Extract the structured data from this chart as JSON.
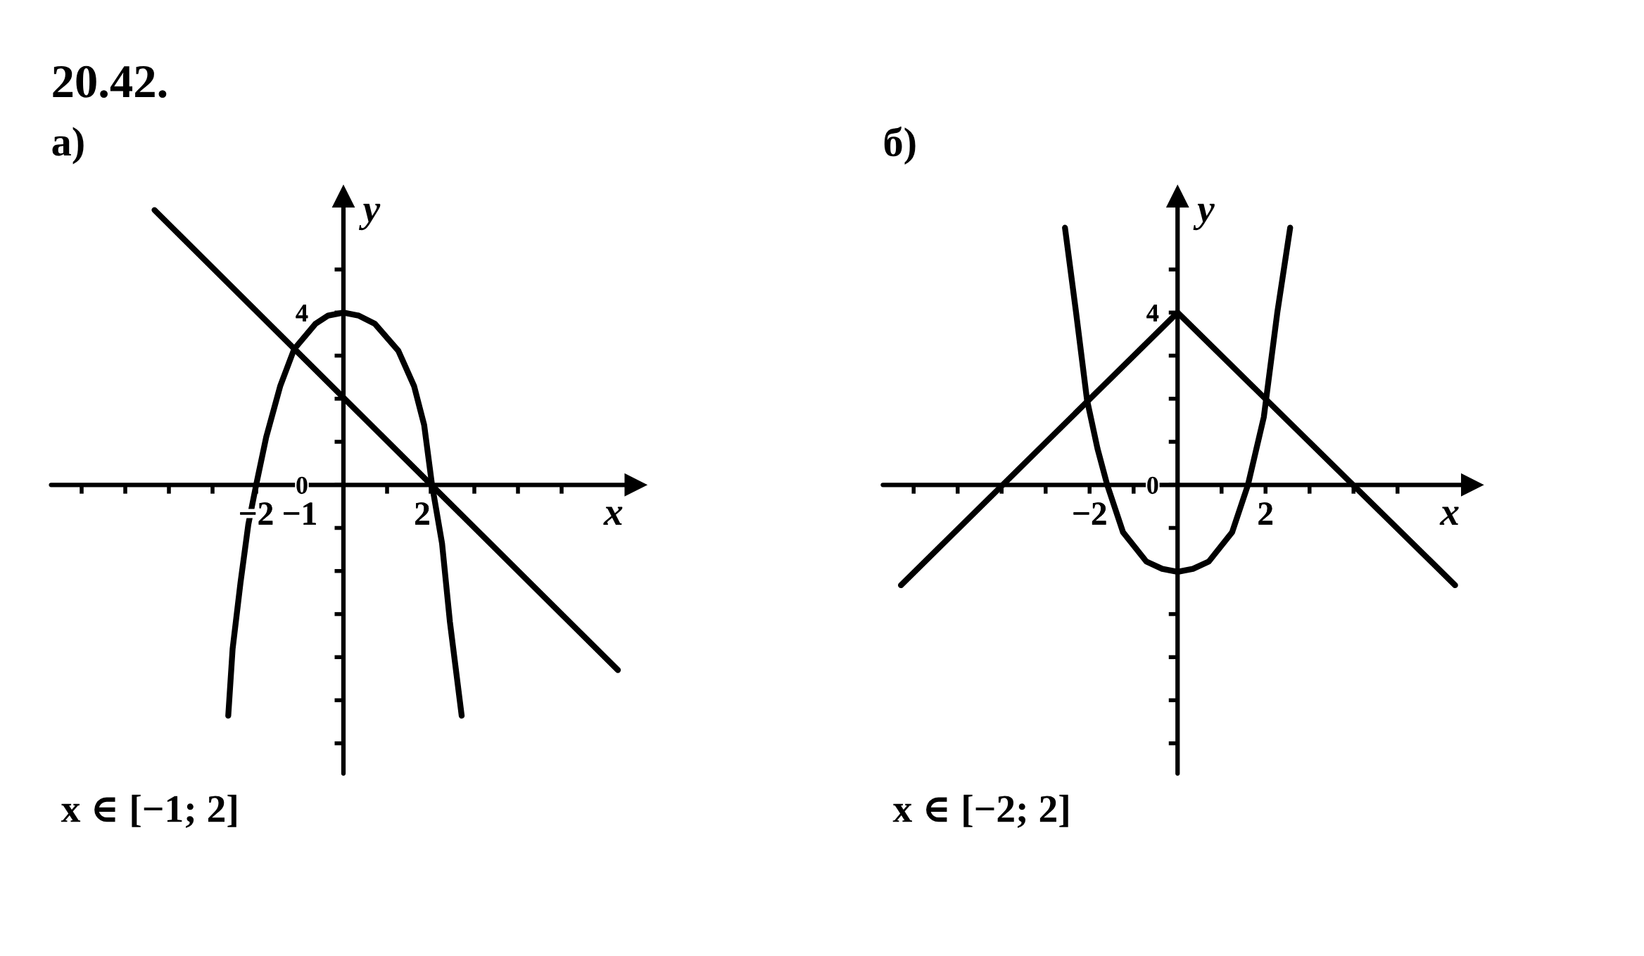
{
  "chart_data": [
    {
      "type": "line",
      "title": "20.42.",
      "subtitle": "а)",
      "xlabel": "x",
      "ylabel": "y",
      "xlim": [
        -6.7,
        6.7
      ],
      "ylim": [
        -6.7,
        6.7
      ],
      "xticks": [
        {
          "value": -6,
          "label": null
        },
        {
          "value": -5,
          "label": null
        },
        {
          "value": -4,
          "label": null
        },
        {
          "value": -3,
          "label": null
        },
        {
          "value": -2,
          "label": "−2"
        },
        {
          "value": -1,
          "label": "−1"
        },
        {
          "value": 1,
          "label": null
        },
        {
          "value": 2,
          "label": "2"
        },
        {
          "value": 3,
          "label": null
        },
        {
          "value": 4,
          "label": null
        },
        {
          "value": 5,
          "label": null
        }
      ],
      "yticks": [
        {
          "value": -6,
          "label": null
        },
        {
          "value": -5,
          "label": null
        },
        {
          "value": -4,
          "label": null
        },
        {
          "value": -3,
          "label": null
        },
        {
          "value": -2,
          "label": null
        },
        {
          "value": -1,
          "label": null
        },
        {
          "value": 0,
          "label": "0"
        },
        {
          "value": 1,
          "label": null
        },
        {
          "value": 2,
          "label": null
        },
        {
          "value": 3,
          "label": null
        },
        {
          "value": 4,
          "label": "4"
        },
        {
          "value": 5,
          "label": null
        }
      ],
      "series": [
        {
          "color": "#000000",
          "x": [
            -2.64,
            -2.54,
            -2.36,
            -2.18,
            -2.0,
            -1.77,
            -1.45,
            -1.13,
            -0.64,
            -0.35,
            0,
            0.35,
            0.72,
            1.26,
            1.62,
            1.85,
            2.03,
            2.26,
            2.44,
            2.71
          ],
          "values": [
            -5.36,
            -3.81,
            -2.28,
            -0.92,
            0,
            1.11,
            2.29,
            3.15,
            3.74,
            3.93,
            4.0,
            3.93,
            3.74,
            3.11,
            2.29,
            1.39,
            0,
            -1.36,
            -3.18,
            -5.36
          ]
        },
        {
          "color": "#000000",
          "x": [
            -4.33,
            6.29
          ],
          "values": [
            6.38,
            -4.3
          ]
        }
      ],
      "annotations": [
        "x ∈ [−1; 2]"
      ]
    },
    {
      "type": "line",
      "subtitle": "б)",
      "xlabel": "x",
      "ylabel": "y",
      "xlim": [
        -6.7,
        6.7
      ],
      "ylim": [
        -6.7,
        6.7
      ],
      "xticks": [
        {
          "value": -6,
          "label": null
        },
        {
          "value": -5,
          "label": null
        },
        {
          "value": -4,
          "label": null
        },
        {
          "value": -3,
          "label": null
        },
        {
          "value": -2,
          "label": "−2"
        },
        {
          "value": -1,
          "label": null
        },
        {
          "value": 1,
          "label": null
        },
        {
          "value": 2,
          "label": "2"
        },
        {
          "value": 3,
          "label": null
        },
        {
          "value": 4,
          "label": null
        },
        {
          "value": 5,
          "label": null
        }
      ],
      "yticks": [
        {
          "value": -6,
          "label": null
        },
        {
          "value": -5,
          "label": null
        },
        {
          "value": -4,
          "label": null
        },
        {
          "value": -3,
          "label": null
        },
        {
          "value": -2,
          "label": null
        },
        {
          "value": -1,
          "label": null
        },
        {
          "value": 0,
          "label": "0"
        },
        {
          "value": 1,
          "label": null
        },
        {
          "value": 2,
          "label": null
        },
        {
          "value": 3,
          "label": null
        },
        {
          "value": 4,
          "label": "4"
        },
        {
          "value": 5,
          "label": null
        }
      ],
      "series": [
        {
          "color": "#000000",
          "x": [
            -6.29,
            0,
            6.31
          ],
          "values": [
            -2.33,
            4.0,
            -2.33
          ]
        },
        {
          "color": "#000000",
          "x": [
            -2.56,
            -2.31,
            -2.06,
            -1.82,
            -1.6,
            -1.24,
            -0.71,
            -0.35,
            0,
            0.35,
            0.71,
            1.24,
            1.6,
            1.96,
            2.27,
            2.56
          ],
          "values": [
            5.97,
            4.02,
            1.98,
            0.84,
            0,
            -1.1,
            -1.78,
            -1.95,
            -2.02,
            -1.95,
            -1.78,
            -1.1,
            0,
            1.57,
            4.02,
            5.97
          ]
        }
      ],
      "annotations": [
        "x ∈ [−2; 2]"
      ]
    }
  ]
}
